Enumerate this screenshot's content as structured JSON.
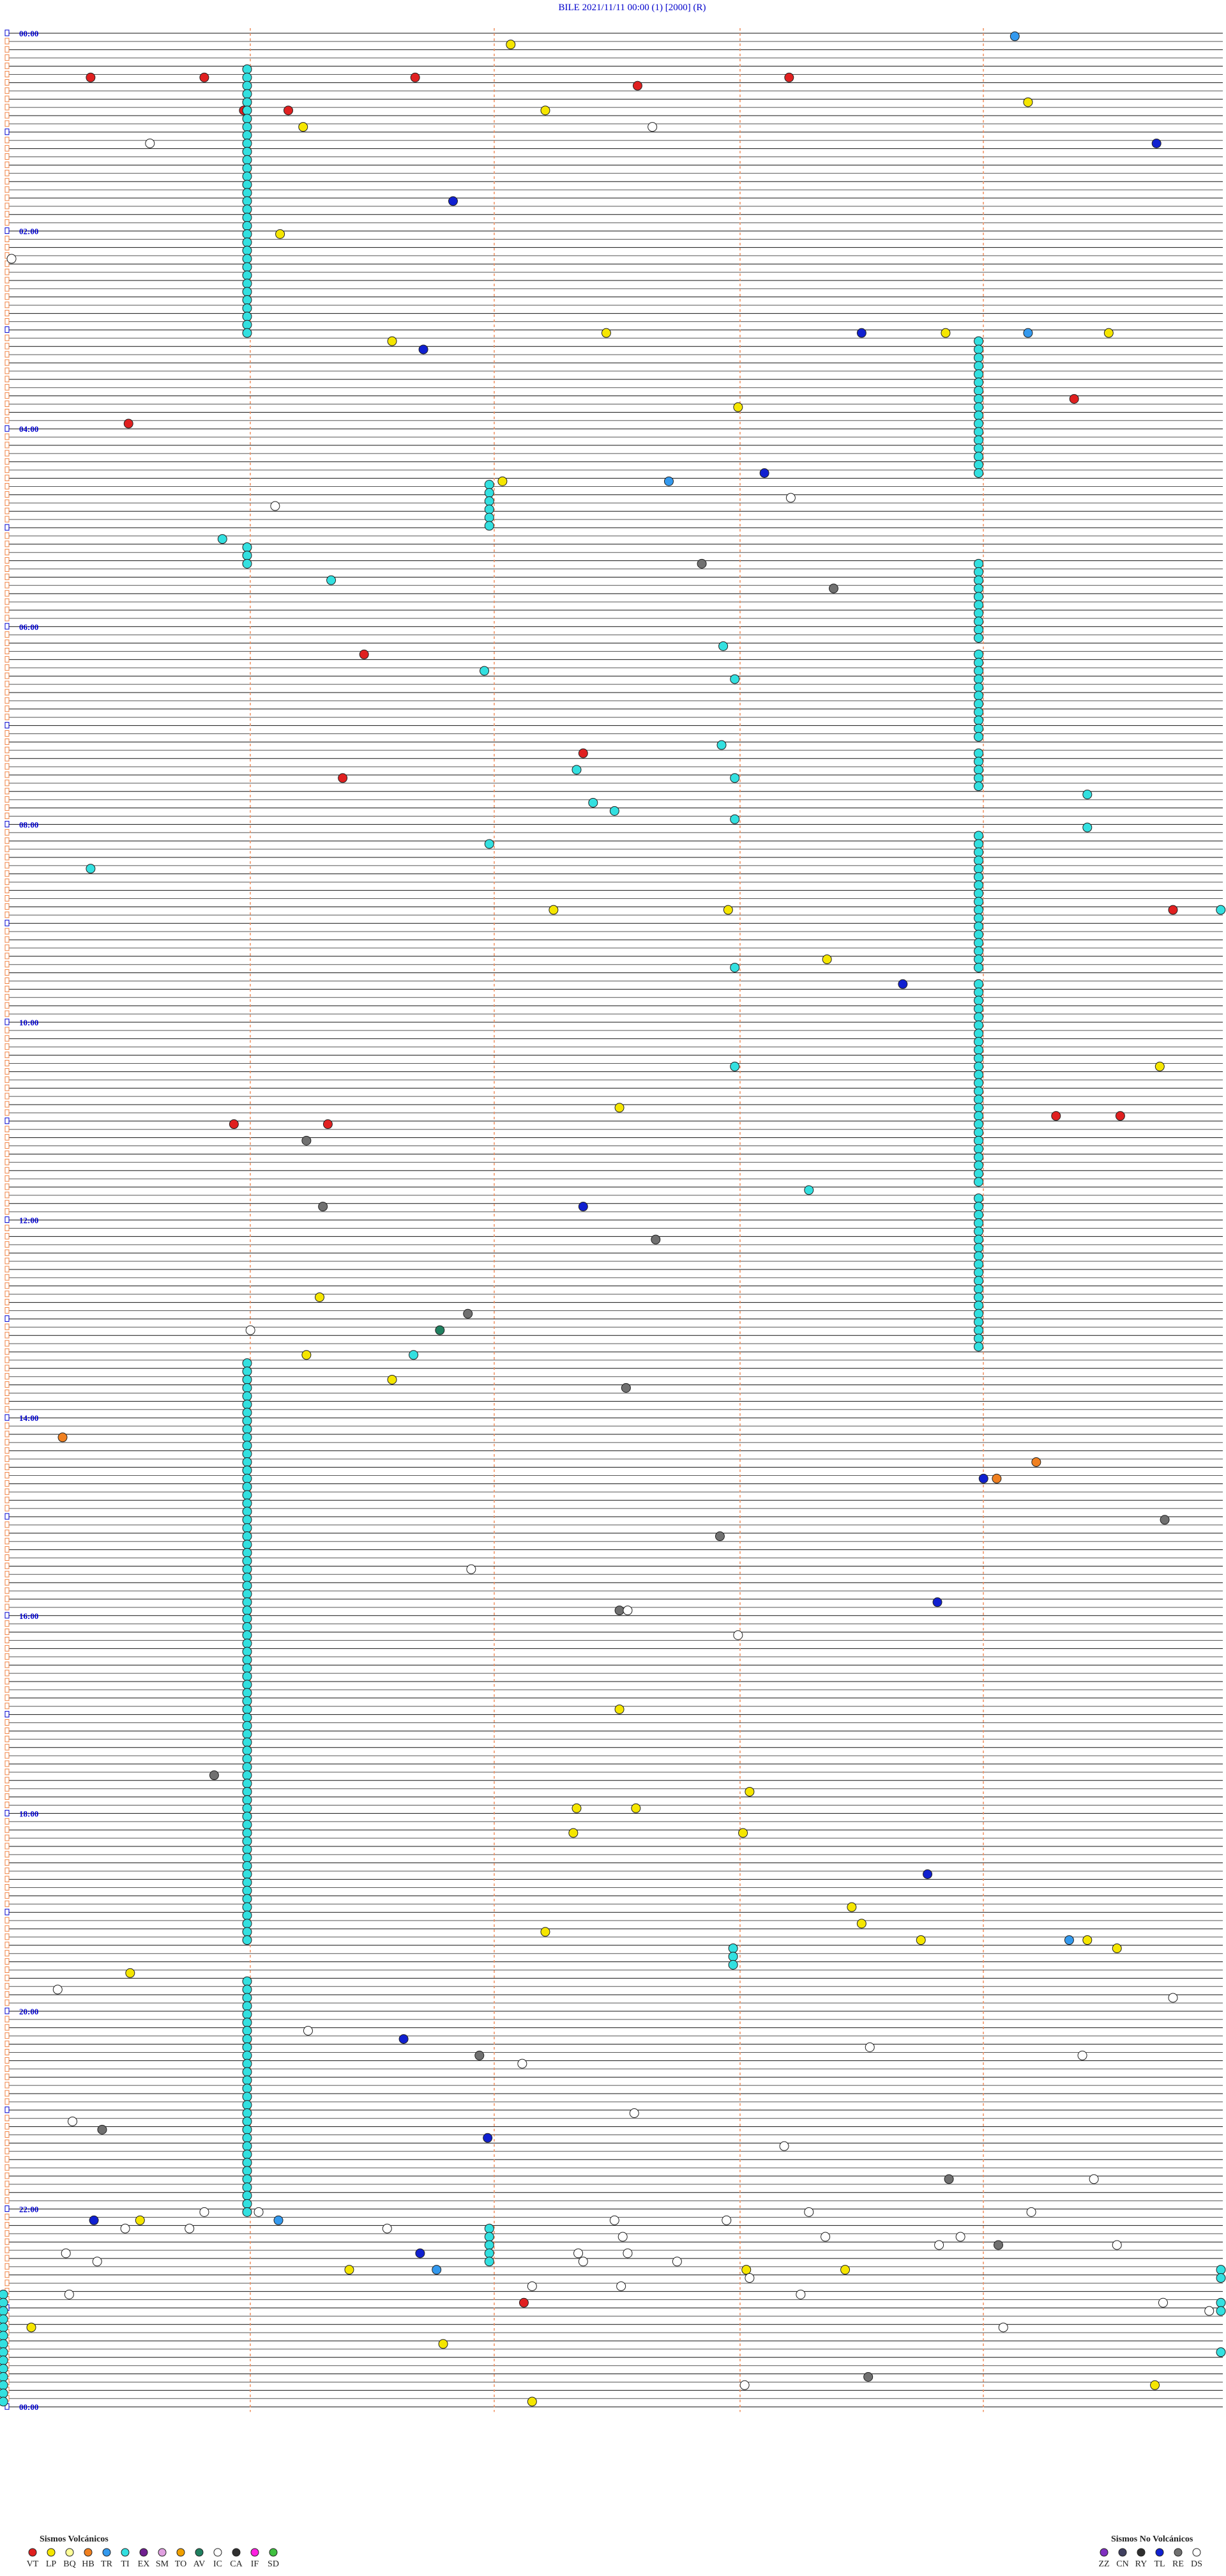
{
  "title": "BILE     2021/11/11 00:00     (1)     [2000]   (R)",
  "time_labels": [
    "00:00",
    "02:00",
    "04:00",
    "06:00",
    "08:00",
    "10:00",
    "12:00",
    "14:00",
    "16:00",
    "18:00",
    "20:00",
    "22:00",
    "00:00"
  ],
  "legend": {
    "volcanic": {
      "title": "Sismos Volcánicos",
      "items": [
        {
          "code": "VT",
          "color": "#e02020"
        },
        {
          "code": "LP",
          "color": "#f5e600"
        },
        {
          "code": "BQ",
          "color": "#ffff99"
        },
        {
          "code": "HB",
          "color": "#f08020"
        },
        {
          "code": "TR",
          "color": "#3399ee"
        },
        {
          "code": "TI",
          "color": "#33e0e0"
        },
        {
          "code": "EX",
          "color": "#702090"
        },
        {
          "code": "SM",
          "color": "#e0a0e0"
        },
        {
          "code": "TO",
          "color": "#f0a000"
        },
        {
          "code": "AV",
          "color": "#208060"
        },
        {
          "code": "IC",
          "color": "#ffffff"
        },
        {
          "code": "CA",
          "color": "#303030"
        },
        {
          "code": "IF",
          "color": "#ff20e0"
        },
        {
          "code": "SD",
          "color": "#40c040"
        }
      ]
    },
    "non_volcanic": {
      "title": "Sismos No Volcánicos",
      "items": [
        {
          "code": "ZZ",
          "color": "#8030c0"
        },
        {
          "code": "CN",
          "color": "#404060"
        },
        {
          "code": "RY",
          "color": "#303030"
        },
        {
          "code": "TL",
          "color": "#1020d0"
        },
        {
          "code": "RE",
          "color": "#707070"
        },
        {
          "code": "DS",
          "color": "#ffffff"
        }
      ]
    }
  }
}
